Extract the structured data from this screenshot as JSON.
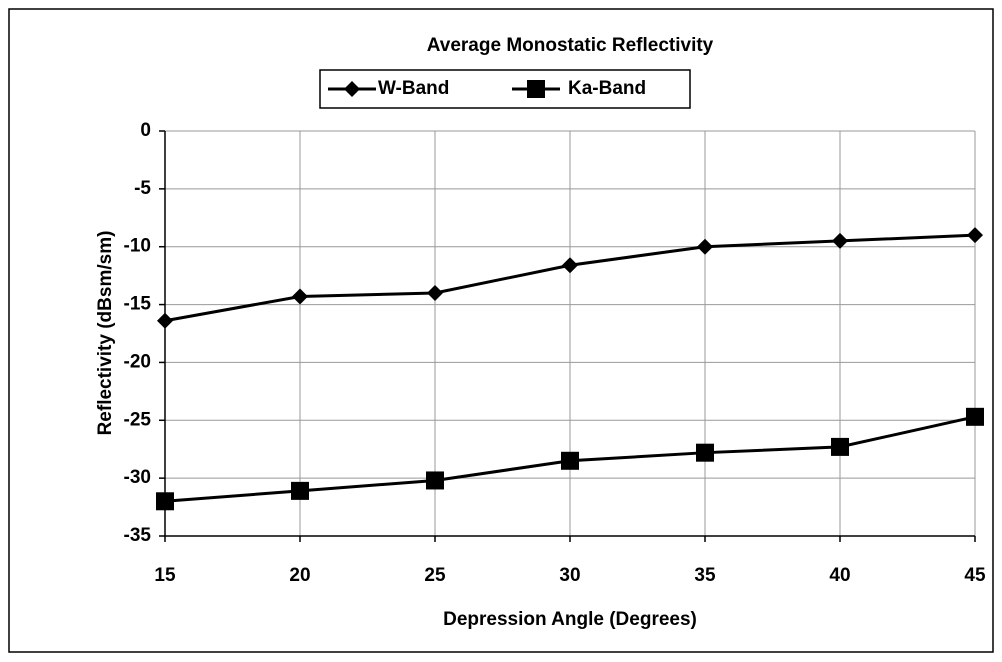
{
  "chart_data": {
    "type": "line",
    "title": "Average Monostatic Reflectivity",
    "x_label": "Depression Angle (Degrees)",
    "y_label": "Reflectivity (dBsm/sm)",
    "x": [
      15,
      20,
      25,
      30,
      35,
      40,
      45
    ],
    "series": [
      {
        "name": "W-Band",
        "color": "#000000",
        "marker": "diamond",
        "values": [
          -16.4,
          -14.3,
          -14.0,
          -11.6,
          -10.0,
          -9.5,
          -9.0
        ]
      },
      {
        "name": "Ka-Band",
        "color": "#000000",
        "marker": "square",
        "values": [
          -32.0,
          -31.1,
          -30.2,
          -28.5,
          -27.8,
          -27.3,
          -24.7
        ]
      }
    ],
    "xlim": [
      15,
      45
    ],
    "xticks": [
      15,
      20,
      25,
      30,
      35,
      40,
      45
    ],
    "ylim": [
      -35,
      0
    ],
    "yticks": [
      0,
      -5,
      -10,
      -15,
      -20,
      -25,
      -30,
      -35
    ],
    "grid": true,
    "legend": "top"
  }
}
